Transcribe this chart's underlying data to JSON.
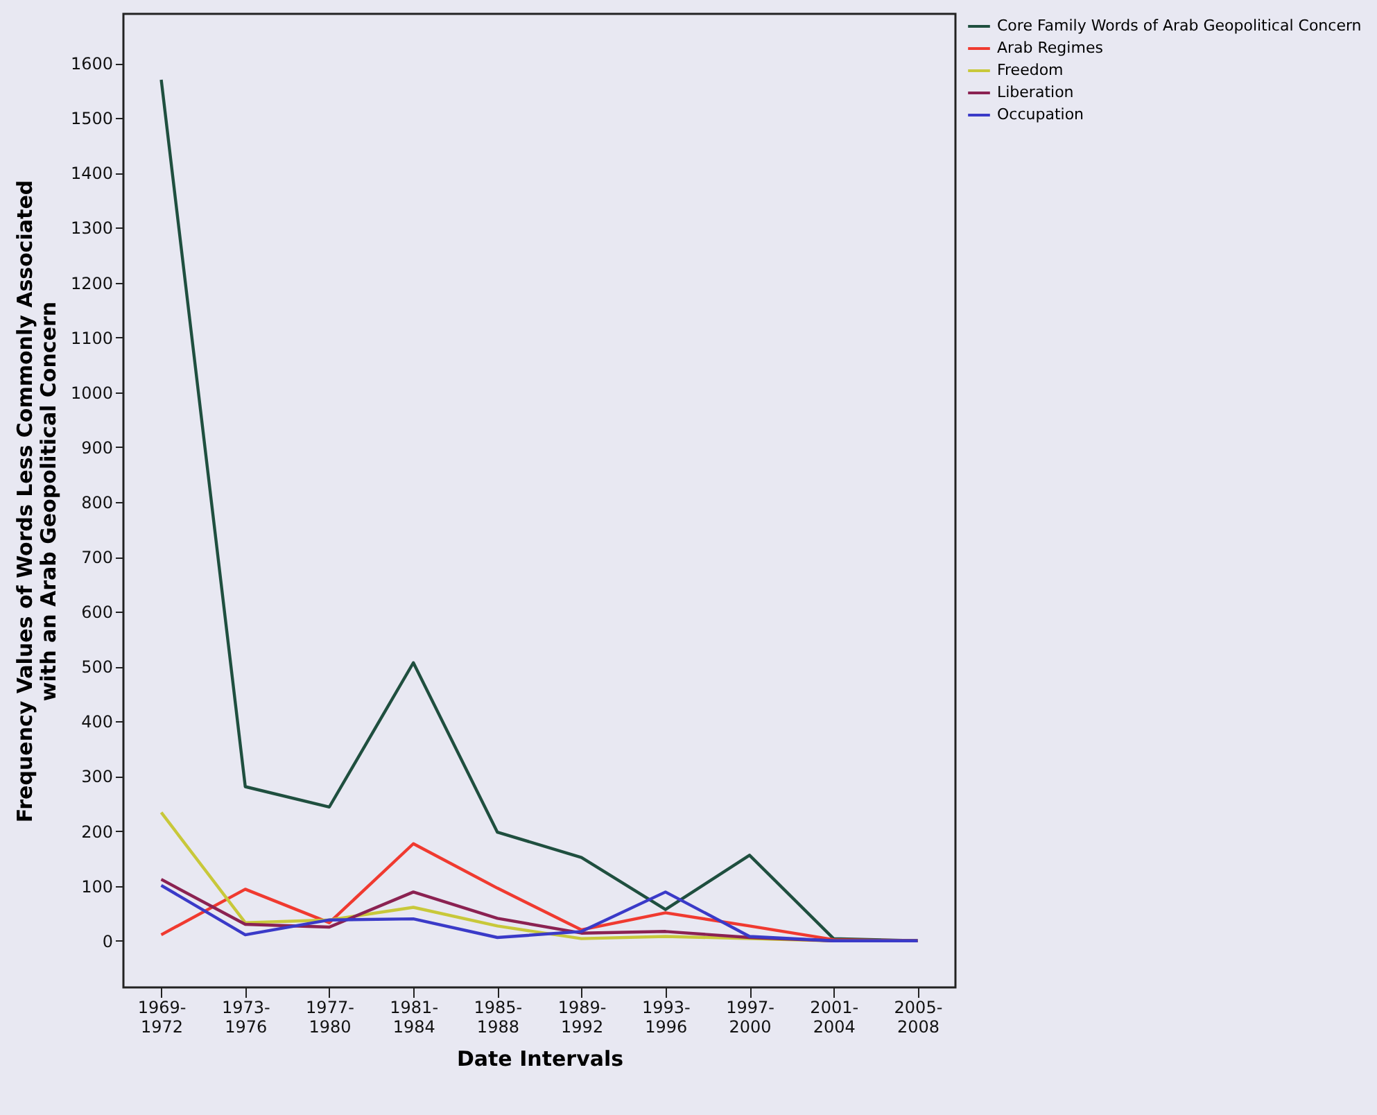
{
  "chart_data": {
    "type": "line",
    "xlabel": "Date Intervals",
    "ylabel": "Frequency Values of Words Less Commonly Associated with an Arab Geopolitical Concern",
    "categories": [
      "1969-1972",
      "1973-1976",
      "1977-1980",
      "1981-1984",
      "1985-1988",
      "1989-1992",
      "1993-1996",
      "1997-2000",
      "2001-2004",
      "2005-2008"
    ],
    "series": [
      {
        "name": "Core Family Words of Arab Geopolitical Concern",
        "color": "#1f4f3f",
        "values": [
          1570,
          281,
          244,
          507,
          198,
          152,
          57,
          156,
          4,
          0
        ]
      },
      {
        "name": "Arab Regimes",
        "color": "#f03a30",
        "values": [
          11,
          94,
          33,
          177,
          96,
          20,
          51,
          27,
          2,
          0
        ]
      },
      {
        "name": "Freedom",
        "color": "#c8c83a",
        "values": [
          234,
          33,
          38,
          61,
          27,
          4,
          8,
          4,
          0,
          0
        ]
      },
      {
        "name": "Liberation",
        "color": "#8b2252",
        "values": [
          112,
          30,
          25,
          89,
          41,
          14,
          17,
          6,
          0,
          0
        ]
      },
      {
        "name": "Occupation",
        "color": "#3a3ac8",
        "values": [
          101,
          11,
          38,
          40,
          6,
          17,
          89,
          8,
          0,
          0
        ]
      }
    ],
    "ylim": [
      -85,
      1690
    ],
    "yticks": [
      0,
      100,
      200,
      300,
      400,
      500,
      600,
      700,
      800,
      900,
      1000,
      1100,
      1200,
      1300,
      1400,
      1500,
      1600
    ],
    "legend": "top right",
    "grid": false,
    "marker": "none",
    "line_style": "solid"
  }
}
